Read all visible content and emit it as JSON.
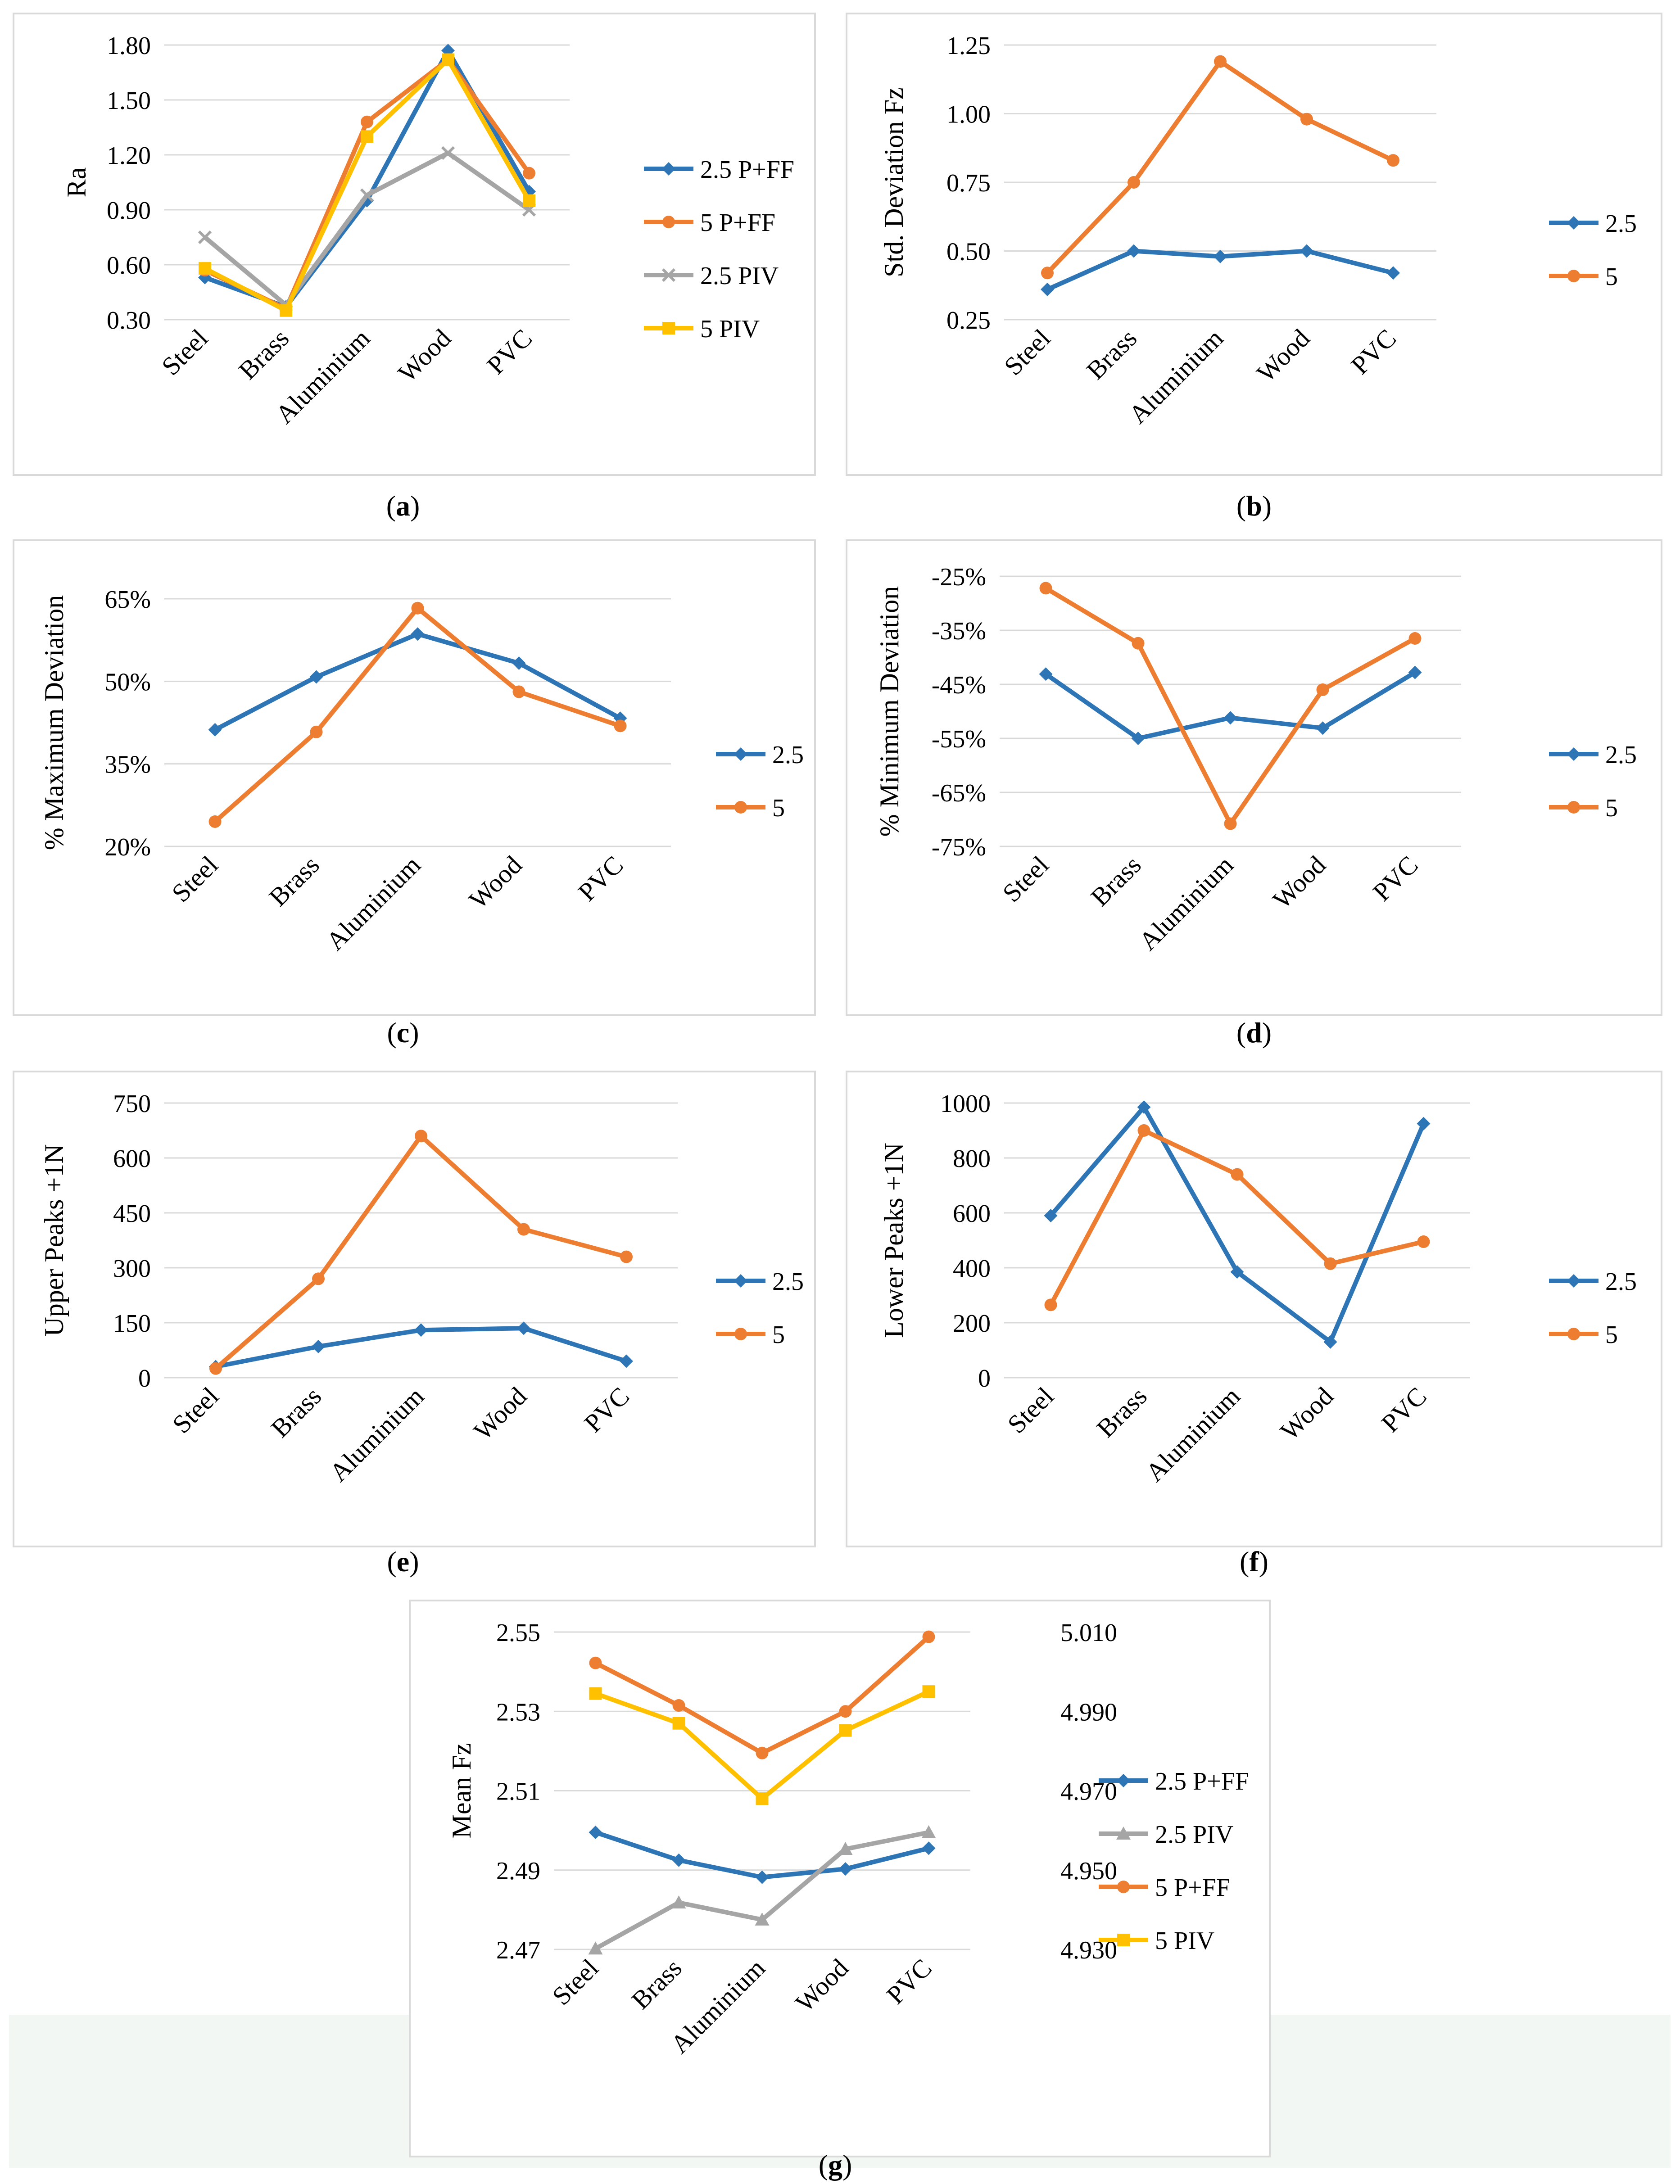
{
  "chart_data": [
    {
      "id": "a",
      "type": "line",
      "caption": "a",
      "title": "",
      "xlabel": "",
      "ylabel": "Ra",
      "categories": [
        "Steel",
        "Brass",
        "Aluminium",
        "Wood",
        "PVC"
      ],
      "ylim": [
        0.3,
        1.8
      ],
      "yticks": [
        "0.30",
        "0.60",
        "0.90",
        "1.20",
        "1.50",
        "1.80"
      ],
      "legend": "right",
      "series": [
        {
          "name": "2.5 P+FF",
          "color": "#2E75B6",
          "marker": "diamond",
          "values": [
            0.53,
            0.37,
            0.95,
            1.77,
            1.0
          ]
        },
        {
          "name": "5 P+FF",
          "color": "#ED7D31",
          "marker": "circle",
          "values": [
            0.57,
            0.36,
            1.38,
            1.72,
            1.1
          ]
        },
        {
          "name": "2.5 PIV",
          "color": "#A5A5A5",
          "marker": "x",
          "values": [
            0.75,
            0.38,
            0.98,
            1.21,
            0.9
          ]
        },
        {
          "name": "5 PIV",
          "color": "#FFC000",
          "marker": "square",
          "values": [
            0.58,
            0.35,
            1.3,
            1.72,
            0.95
          ]
        }
      ]
    },
    {
      "id": "b",
      "type": "line",
      "caption": "b",
      "title": "",
      "xlabel": "",
      "ylabel": "Std. Deviation Fz",
      "categories": [
        "Steel",
        "Brass",
        "Aluminium",
        "Wood",
        "PVC"
      ],
      "ylim": [
        0.25,
        1.25
      ],
      "yticks": [
        "0.25",
        "0.50",
        "0.75",
        "1.00",
        "1.25"
      ],
      "legend": "right",
      "series": [
        {
          "name": "2.5",
          "color": "#2E75B6",
          "marker": "diamond",
          "values": [
            0.36,
            0.5,
            0.48,
            0.5,
            0.42
          ]
        },
        {
          "name": "5",
          "color": "#ED7D31",
          "marker": "circle",
          "values": [
            0.42,
            0.75,
            1.19,
            0.98,
            0.83
          ]
        }
      ]
    },
    {
      "id": "c",
      "type": "line",
      "caption": "c",
      "title": "",
      "xlabel": "",
      "ylabel": "% Maximum Deviation",
      "categories": [
        "Steel",
        "Brass",
        "Aluminium",
        "Wood",
        "PVC"
      ],
      "ylim": [
        20,
        65
      ],
      "yticks": [
        "20%",
        "35%",
        "50%",
        "65%"
      ],
      "legend": "right",
      "series": [
        {
          "name": "2.5",
          "color": "#2E75B6",
          "marker": "diamond",
          "values": [
            41.2,
            50.8,
            58.6,
            53.3,
            43.3
          ]
        },
        {
          "name": "5",
          "color": "#ED7D31",
          "marker": "circle",
          "values": [
            24.5,
            40.8,
            63.3,
            48.1,
            41.9
          ]
        }
      ]
    },
    {
      "id": "d",
      "type": "line",
      "caption": "d",
      "title": "",
      "xlabel": "",
      "ylabel": "% Minimum Deviation",
      "categories": [
        "Steel",
        "Brass",
        "Aluminium",
        "Wood",
        "PVC"
      ],
      "ylim": [
        -75,
        -25
      ],
      "yticks": [
        "-75%",
        "-65%",
        "-55%",
        "-45%",
        "-35%",
        "-25%"
      ],
      "legend": "right",
      "series": [
        {
          "name": "2.5",
          "color": "#2E75B6",
          "marker": "diamond",
          "values": [
            -43.1,
            -55.0,
            -51.2,
            -53.1,
            -42.8
          ]
        },
        {
          "name": "5",
          "color": "#ED7D31",
          "marker": "circle",
          "values": [
            -27.2,
            -37.4,
            -70.8,
            -46.0,
            -36.5
          ]
        }
      ]
    },
    {
      "id": "e",
      "type": "line",
      "caption": "e",
      "title": "",
      "xlabel": "",
      "ylabel": "Upper Peaks +1N",
      "categories": [
        "Steel",
        "Brass",
        "Aluminium",
        "Wood",
        "PVC"
      ],
      "ylim": [
        0,
        750
      ],
      "yticks": [
        "0",
        "150",
        "300",
        "450",
        "600",
        "750"
      ],
      "legend": "right",
      "series": [
        {
          "name": "2.5",
          "color": "#2E75B6",
          "marker": "diamond",
          "values": [
            30,
            85,
            130,
            135,
            45
          ]
        },
        {
          "name": "5",
          "color": "#ED7D31",
          "marker": "circle",
          "values": [
            25,
            270,
            660,
            405,
            330
          ]
        }
      ]
    },
    {
      "id": "f",
      "type": "line",
      "caption": "f",
      "title": "",
      "xlabel": "",
      "ylabel": "Lower Peaks +1N",
      "categories": [
        "Steel",
        "Brass",
        "Aluminium",
        "Wood",
        "PVC"
      ],
      "ylim": [
        0,
        1000
      ],
      "yticks": [
        "0",
        "200",
        "400",
        "600",
        "800",
        "1000"
      ],
      "legend": "right",
      "series": [
        {
          "name": "2.5",
          "color": "#2E75B6",
          "marker": "diamond",
          "values": [
            590,
            985,
            385,
            130,
            925
          ]
        },
        {
          "name": "5",
          "color": "#ED7D31",
          "marker": "circle",
          "values": [
            265,
            900,
            740,
            415,
            495
          ]
        }
      ]
    },
    {
      "id": "g",
      "type": "line",
      "caption": "g",
      "title": "",
      "xlabel": "",
      "ylabel": "Mean Fz",
      "categories": [
        "Steel",
        "Brass",
        "Aluminium",
        "Wood",
        "PVC"
      ],
      "ylim": [
        2.47,
        2.55
      ],
      "yticks": [
        "2.47",
        "2.49",
        "2.51",
        "2.53",
        "2.55"
      ],
      "ylim_right": [
        4.93,
        5.01
      ],
      "yticks_right": [
        "4.930",
        "4.950",
        "4.970",
        "4.990",
        "5.010"
      ],
      "legend": "right",
      "series": [
        {
          "name": "2.5 P+FF",
          "color": "#2E75B6",
          "marker": "diamond",
          "axis": "left",
          "values": [
            2.4995,
            2.4925,
            2.4882,
            2.4903,
            2.4955
          ]
        },
        {
          "name": "2.5 PIV",
          "color": "#A5A5A5",
          "marker": "triangle",
          "axis": "left",
          "values": [
            2.4702,
            2.4818,
            2.4775,
            2.4953,
            2.4995
          ]
        },
        {
          "name": "5 P+FF",
          "color": "#ED7D31",
          "marker": "circle",
          "axis": "right",
          "values": [
            5.0022,
            4.9915,
            4.9795,
            4.99,
            5.0088
          ]
        },
        {
          "name": "5 PIV",
          "color": "#FFC000",
          "marker": "square",
          "axis": "right",
          "values": [
            4.9945,
            4.987,
            4.968,
            4.9852,
            4.995
          ]
        }
      ]
    }
  ]
}
